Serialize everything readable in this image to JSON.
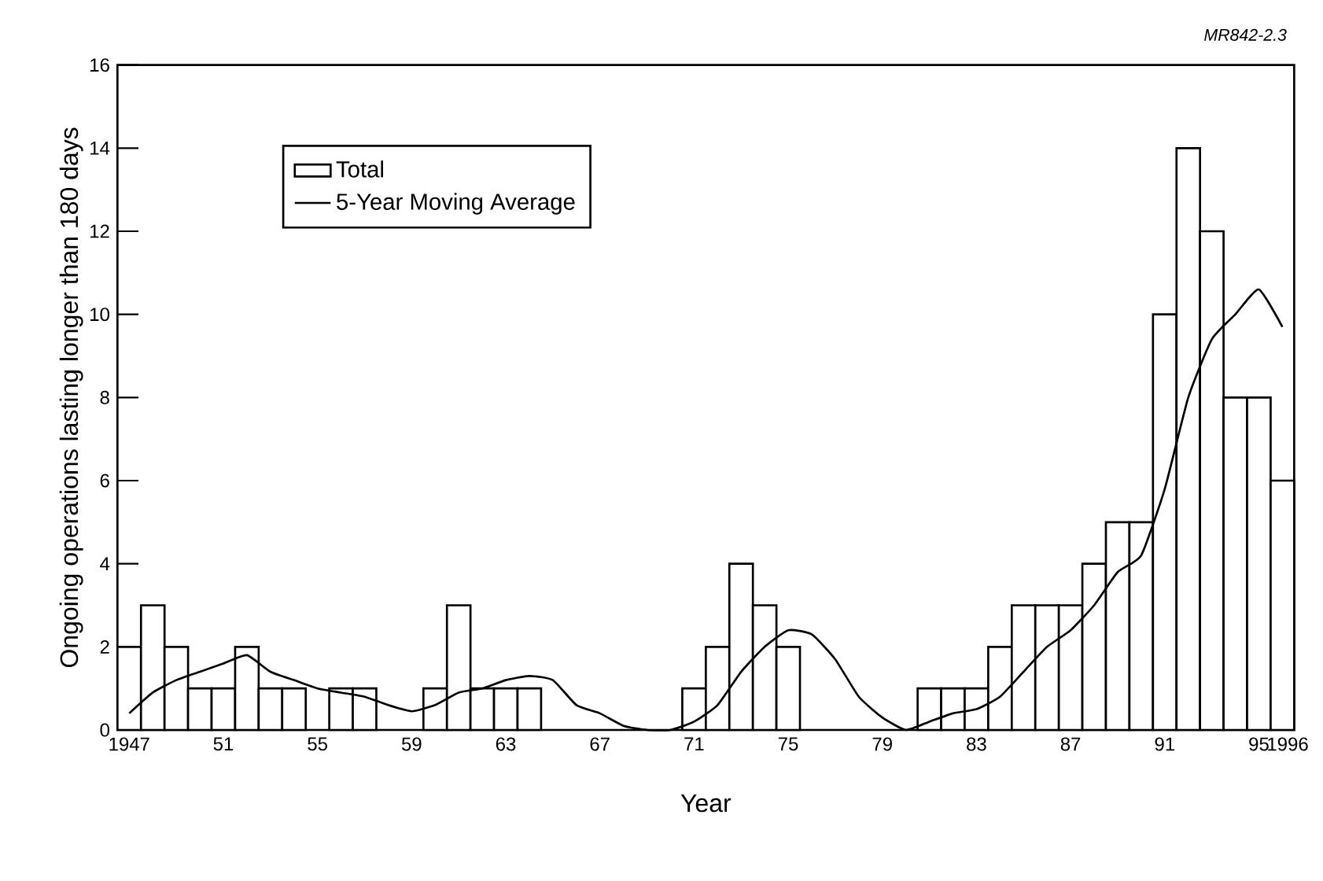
{
  "chart_data": {
    "type": "bar",
    "xlabel": "Year",
    "ylabel": "Ongoing operations lasting longer than 180 days",
    "annotations": [
      "MR842-2.3"
    ],
    "x": [
      1947,
      1948,
      1949,
      1950,
      1951,
      1952,
      1953,
      1954,
      1955,
      1956,
      1957,
      1958,
      1959,
      1960,
      1961,
      1962,
      1963,
      1964,
      1965,
      1966,
      1967,
      1968,
      1969,
      1970,
      1971,
      1972,
      1973,
      1974,
      1975,
      1976,
      1977,
      1978,
      1979,
      1980,
      1981,
      1982,
      1983,
      1984,
      1985,
      1986,
      1987,
      1988,
      1989,
      1990,
      1991,
      1992,
      1993,
      1994,
      1995,
      1996
    ],
    "series": [
      {
        "name": "Total",
        "color": "#ffffff",
        "values": [
          2,
          3,
          2,
          1,
          1,
          2,
          1,
          1,
          0,
          1,
          1,
          0,
          0,
          1,
          3,
          1,
          1,
          1,
          0,
          0,
          0,
          0,
          0,
          0,
          1,
          2,
          4,
          3,
          2,
          0,
          0,
          0,
          0,
          0,
          1,
          1,
          1,
          2,
          3,
          3,
          3,
          4,
          5,
          5,
          10,
          14,
          12,
          8,
          8,
          6
        ]
      },
      {
        "name": "5-Year Moving Average",
        "type": "line",
        "color": "#000000",
        "values": [
          0.4,
          0.9,
          1.2,
          1.4,
          1.6,
          1.8,
          1.4,
          1.2,
          1.0,
          0.9,
          0.8,
          0.6,
          0.45,
          0.6,
          0.9,
          1.0,
          1.2,
          1.3,
          1.2,
          0.6,
          0.4,
          0.1,
          0,
          0,
          0.2,
          0.6,
          1.4,
          2.0,
          2.4,
          2.3,
          1.7,
          0.8,
          0.3,
          0,
          0.2,
          0.4,
          0.5,
          0.8,
          1.4,
          2.0,
          2.4,
          3.0,
          3.8,
          4.2,
          5.8,
          8.0,
          9.4,
          10.0,
          10.6,
          9.7
        ]
      }
    ],
    "xlim": [
      1946.5,
      1996.5
    ],
    "xticks": [
      {
        "value": 1947,
        "label": "1947"
      },
      {
        "value": 1951,
        "label": "51"
      },
      {
        "value": 1955,
        "label": "55"
      },
      {
        "value": 1959,
        "label": "59"
      },
      {
        "value": 1963,
        "label": "63"
      },
      {
        "value": 1967,
        "label": "67"
      },
      {
        "value": 1971,
        "label": "71"
      },
      {
        "value": 1975,
        "label": "75"
      },
      {
        "value": 1979,
        "label": "79"
      },
      {
        "value": 1983,
        "label": "83"
      },
      {
        "value": 1987,
        "label": "87"
      },
      {
        "value": 1991,
        "label": "91"
      },
      {
        "value": 1995,
        "label": "95"
      },
      {
        "value": 1996,
        "label": "1996"
      }
    ],
    "ylim": [
      0,
      16
    ],
    "yticks": [
      0,
      2,
      4,
      6,
      8,
      10,
      12,
      14,
      16
    ],
    "legend": "top left"
  }
}
